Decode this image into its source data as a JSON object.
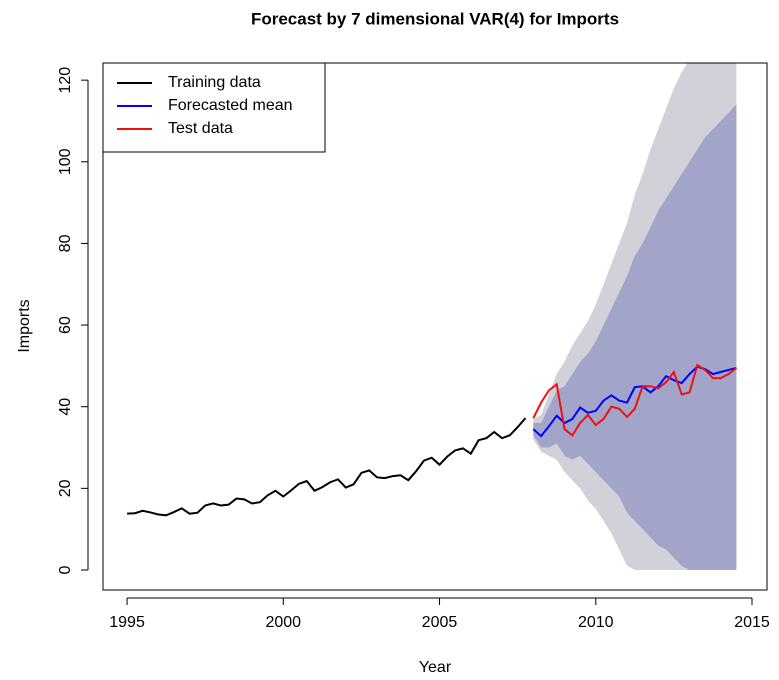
{
  "chart_data": {
    "type": "line",
    "title": "Forecast by 7 dimensional VAR(4) for Imports",
    "x_label": "Year",
    "y_label": "Imports",
    "xlim": [
      1994.23,
      2015.48
    ],
    "ylim": [
      -4.9,
      124.2
    ],
    "xticks": [
      1995,
      2000,
      2005,
      2010,
      2015
    ],
    "yticks": [
      0,
      20,
      40,
      60,
      80,
      100,
      120
    ],
    "legend": "top-left",
    "intervals": [
      {
        "color": "#d1d1d9",
        "x": [
          2008,
          2008.25,
          2008.5,
          2008.75,
          2009,
          2009.25,
          2009.5,
          2009.75,
          2010,
          2010.25,
          2010.5,
          2010.75,
          2011,
          2011.25,
          2011.5,
          2011.75,
          2012,
          2012.25,
          2012.5,
          2012.75,
          2013,
          2013.25,
          2013.5,
          2013.75,
          2014,
          2014.25,
          2014.5
        ],
        "lower": [
          32,
          29,
          28,
          27,
          24,
          22,
          20,
          17,
          15,
          12,
          9,
          5,
          1,
          0,
          0,
          0,
          0,
          0,
          0,
          0,
          0,
          0,
          0,
          0,
          0,
          0,
          0
        ],
        "upper": [
          37,
          38,
          43,
          48,
          51,
          55,
          58,
          61,
          65,
          70,
          75,
          80,
          85,
          92,
          97,
          103,
          108,
          113,
          118,
          122,
          125,
          128,
          131,
          134,
          137,
          140,
          143
        ]
      },
      {
        "color": "#a2a5c9",
        "x": [
          2008,
          2008.25,
          2008.5,
          2008.75,
          2009,
          2009.25,
          2009.5,
          2009.75,
          2010,
          2010.25,
          2010.5,
          2010.75,
          2011,
          2011.25,
          2011.5,
          2011.75,
          2012,
          2012.25,
          2012.5,
          2012.75,
          2013,
          2013.25,
          2013.5,
          2013.75,
          2014,
          2014.25,
          2014.5
        ],
        "lower": [
          33,
          30,
          30,
          31,
          28,
          27,
          28,
          26,
          24,
          22,
          20,
          18,
          14,
          12,
          10,
          8,
          6,
          5,
          3,
          1,
          0,
          0,
          0,
          0,
          0,
          0,
          0
        ],
        "upper": [
          36,
          36,
          40,
          44,
          45,
          48,
          51,
          53,
          56,
          60,
          64,
          68,
          72,
          77,
          80,
          84,
          88,
          91,
          94,
          97,
          100,
          103,
          106,
          108,
          110,
          112,
          114
        ]
      }
    ],
    "series": [
      {
        "name": "Training data",
        "color": "#000000",
        "x": [
          1995,
          1995.25,
          1995.5,
          1995.75,
          1996,
          1996.25,
          1996.5,
          1996.75,
          1997,
          1997.25,
          1997.5,
          1997.75,
          1998,
          1998.25,
          1998.5,
          1998.75,
          1999,
          1999.25,
          1999.5,
          1999.75,
          2000,
          2000.25,
          2000.5,
          2000.75,
          2001,
          2001.25,
          2001.5,
          2001.75,
          2002,
          2002.25,
          2002.5,
          2002.75,
          2003,
          2003.25,
          2003.5,
          2003.75,
          2004,
          2004.25,
          2004.5,
          2004.75,
          2005,
          2005.25,
          2005.5,
          2005.75,
          2006,
          2006.25,
          2006.5,
          2006.75,
          2007,
          2007.25,
          2007.5,
          2007.75
        ],
        "values": [
          13.8,
          13.9,
          14.5,
          14.1,
          13.6,
          13.4,
          14.2,
          15.1,
          13.8,
          14.0,
          15.8,
          16.3,
          15.8,
          16.0,
          17.5,
          17.3,
          16.3,
          16.6,
          18.3,
          19.4,
          18.0,
          19.5,
          21.1,
          21.8,
          19.4,
          20.3,
          21.5,
          22.2,
          20.2,
          21.0,
          23.8,
          24.4,
          22.7,
          22.5,
          23.0,
          23.2,
          22.0,
          24.2,
          26.8,
          27.5,
          25.8,
          27.8,
          29.3,
          29.8,
          28.5,
          31.8,
          32.3,
          33.8,
          32.3,
          33.0,
          35.0,
          37.2
        ]
      },
      {
        "name": "Forecasted mean",
        "color": "#0000ff",
        "x": [
          2008,
          2008.25,
          2008.5,
          2008.75,
          2009,
          2009.25,
          2009.5,
          2009.75,
          2010,
          2010.25,
          2010.5,
          2010.75,
          2011,
          2011.25,
          2011.5,
          2011.75,
          2012,
          2012.25,
          2012.5,
          2012.75,
          2013,
          2013.25,
          2013.5,
          2013.75,
          2014,
          2014.25,
          2014.5
        ],
        "values": [
          34.5,
          32.8,
          35.2,
          37.8,
          36.0,
          37.0,
          39.8,
          38.5,
          39.0,
          41.5,
          42.8,
          41.5,
          41.0,
          44.8,
          45.0,
          43.5,
          45.0,
          47.5,
          46.5,
          45.8,
          48.0,
          49.8,
          49.2,
          48.0,
          48.5,
          49.0,
          49.5
        ]
      },
      {
        "name": "Test data",
        "color": "#ee1111",
        "x": [
          2008,
          2008.25,
          2008.5,
          2008.75,
          2009,
          2009.25,
          2009.5,
          2009.75,
          2010,
          2010.25,
          2010.5,
          2010.75,
          2011,
          2011.25,
          2011.5,
          2011.75,
          2012,
          2012.25,
          2012.5,
          2012.75,
          2013,
          2013.25,
          2013.5,
          2013.75,
          2014,
          2014.25,
          2014.5
        ],
        "values": [
          37.2,
          41.0,
          44.0,
          45.5,
          34.5,
          33.0,
          36.0,
          38.0,
          35.5,
          37.0,
          40.0,
          39.5,
          37.5,
          39.5,
          45.0,
          45.0,
          44.5,
          46.0,
          48.5,
          43.0,
          43.5,
          50.2,
          49.0,
          47.0,
          47.0,
          48.0,
          49.5
        ]
      }
    ]
  }
}
